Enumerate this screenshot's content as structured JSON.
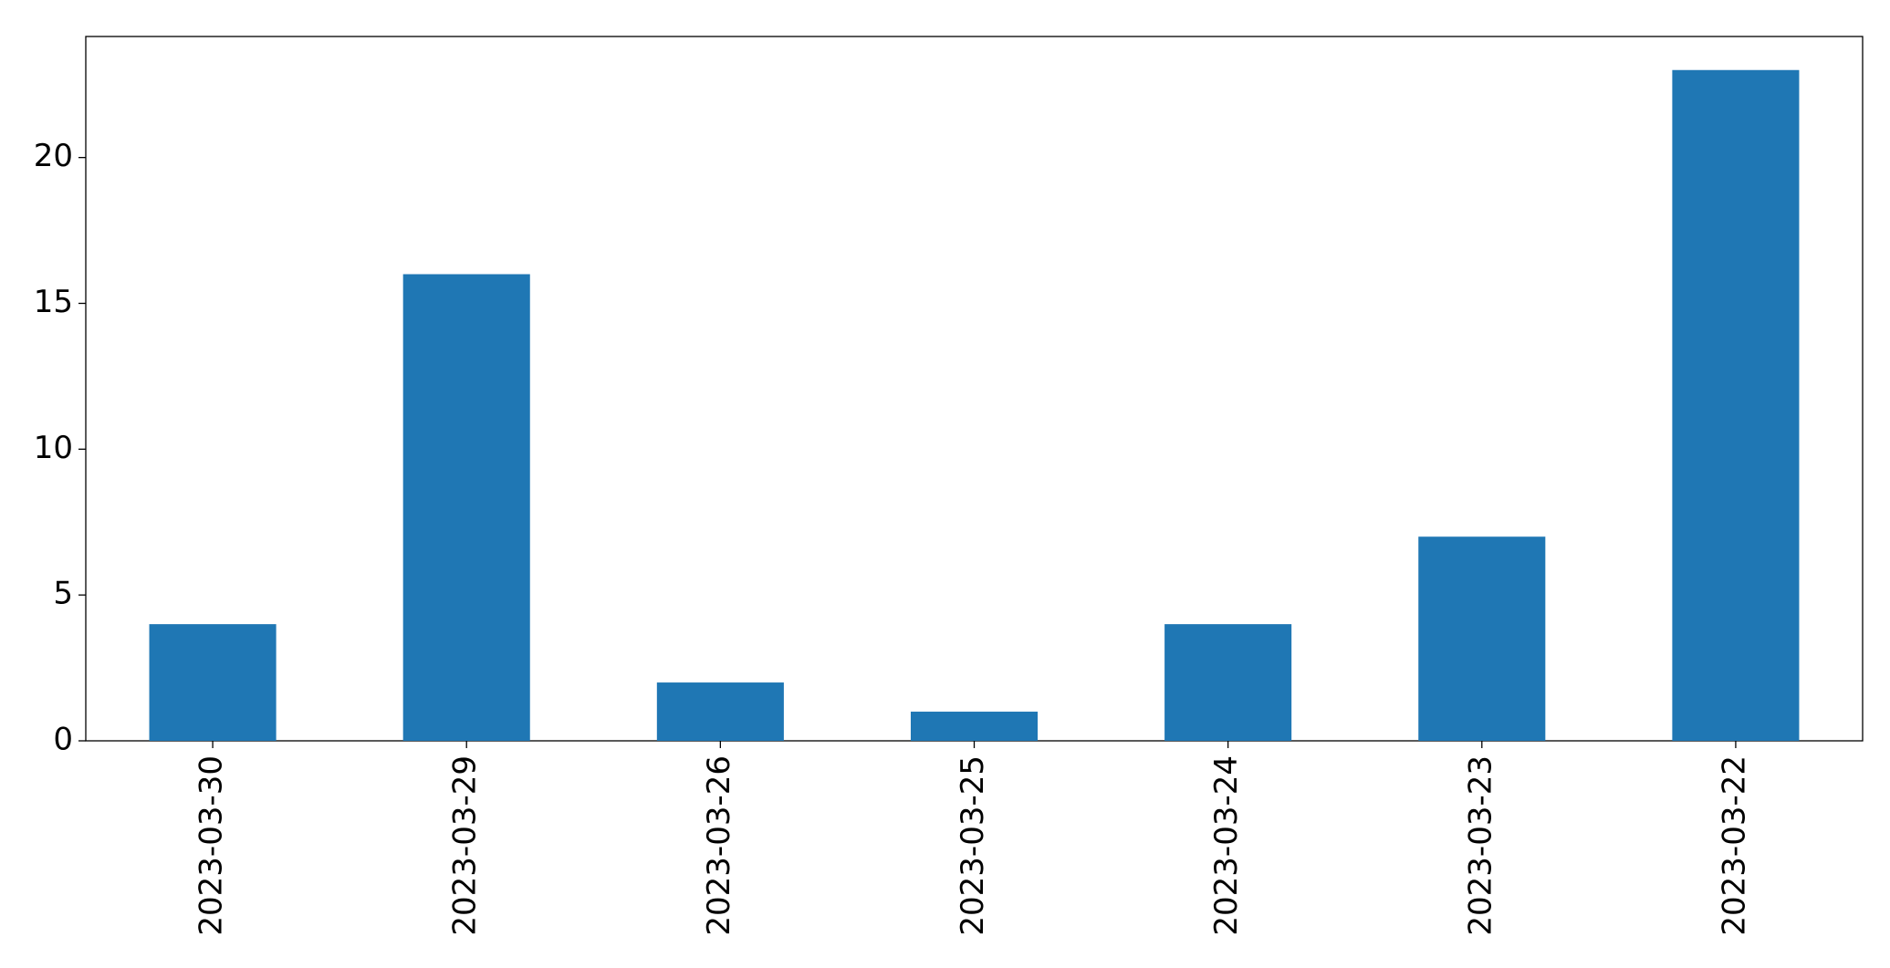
{
  "chart_data": {
    "type": "bar",
    "categories": [
      "2023-03-30",
      "2023-03-29",
      "2023-03-26",
      "2023-03-25",
      "2023-03-24",
      "2023-03-23",
      "2023-03-22"
    ],
    "values": [
      4,
      16,
      2,
      1,
      4,
      7,
      23
    ],
    "color": "#1f77b4",
    "ylim": [
      0,
      24.15
    ],
    "yticks": [
      0,
      5,
      10,
      15,
      20
    ],
    "grid": false
  }
}
